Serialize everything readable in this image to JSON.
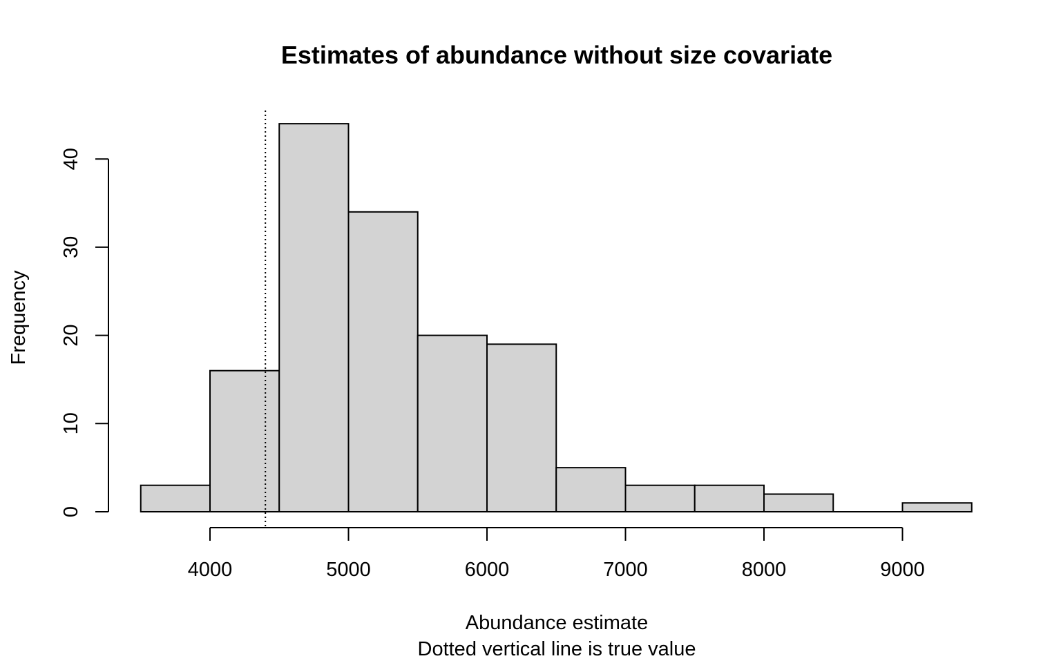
{
  "chart_data": {
    "type": "histogram",
    "title": "Estimates of abundance without size covariate",
    "xlabel": "Abundance estimate",
    "subtitle": "Dotted vertical line is true value",
    "ylabel": "Frequency",
    "bins": [
      {
        "x0": 3500,
        "x1": 4000,
        "count": 3
      },
      {
        "x0": 4000,
        "x1": 4500,
        "count": 16
      },
      {
        "x0": 4500,
        "x1": 5000,
        "count": 44
      },
      {
        "x0": 5000,
        "x1": 5500,
        "count": 34
      },
      {
        "x0": 5500,
        "x1": 6000,
        "count": 20
      },
      {
        "x0": 6000,
        "x1": 6500,
        "count": 19
      },
      {
        "x0": 6500,
        "x1": 7000,
        "count": 5
      },
      {
        "x0": 7000,
        "x1": 7500,
        "count": 3
      },
      {
        "x0": 7500,
        "x1": 8000,
        "count": 3
      },
      {
        "x0": 8000,
        "x1": 8500,
        "count": 2
      },
      {
        "x0": 8500,
        "x1": 9000,
        "count": 0
      },
      {
        "x0": 9000,
        "x1": 9500,
        "count": 1
      }
    ],
    "x_ticks": [
      4000,
      5000,
      6000,
      7000,
      8000,
      9000
    ],
    "y_ticks": [
      0,
      10,
      20,
      30,
      40
    ],
    "true_value": 4400,
    "bar_color": "#d3d3d3",
    "bar_stroke": "#000000",
    "grid": false,
    "legend": "none"
  }
}
